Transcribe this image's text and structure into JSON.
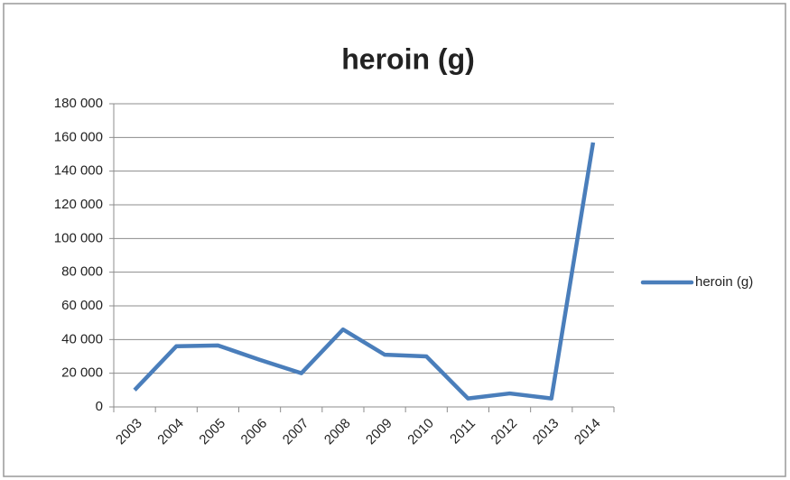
{
  "chart_data": {
    "type": "line",
    "title": "heroin (g)",
    "categories": [
      "2003",
      "2004",
      "2005",
      "2006",
      "2007",
      "2008",
      "2009",
      "2010",
      "2011",
      "2012",
      "2013",
      "2014"
    ],
    "series": [
      {
        "name": "heroin (g)",
        "color": "#4a7ebb",
        "values": [
          10000,
          36000,
          36500,
          28000,
          20000,
          46000,
          31000,
          30000,
          5000,
          8000,
          5000,
          157000
        ]
      }
    ],
    "ylim": [
      0,
      180000
    ],
    "yticks": [
      0,
      {
        "value": 20000,
        "label": "20 000"
      },
      {
        "value": 40000,
        "label": "40 000"
      },
      {
        "value": 60000,
        "label": "60 000"
      },
      {
        "value": 80000,
        "label": "80 000"
      },
      {
        "value": 100000,
        "label": "100 000"
      },
      {
        "value": 120000,
        "label": "120 000"
      },
      {
        "value": 140000,
        "label": "140 000"
      },
      {
        "value": 160000,
        "label": "160 000"
      },
      {
        "value": 180000,
        "label": "180 000"
      }
    ],
    "grid": true,
    "legend": "right"
  }
}
